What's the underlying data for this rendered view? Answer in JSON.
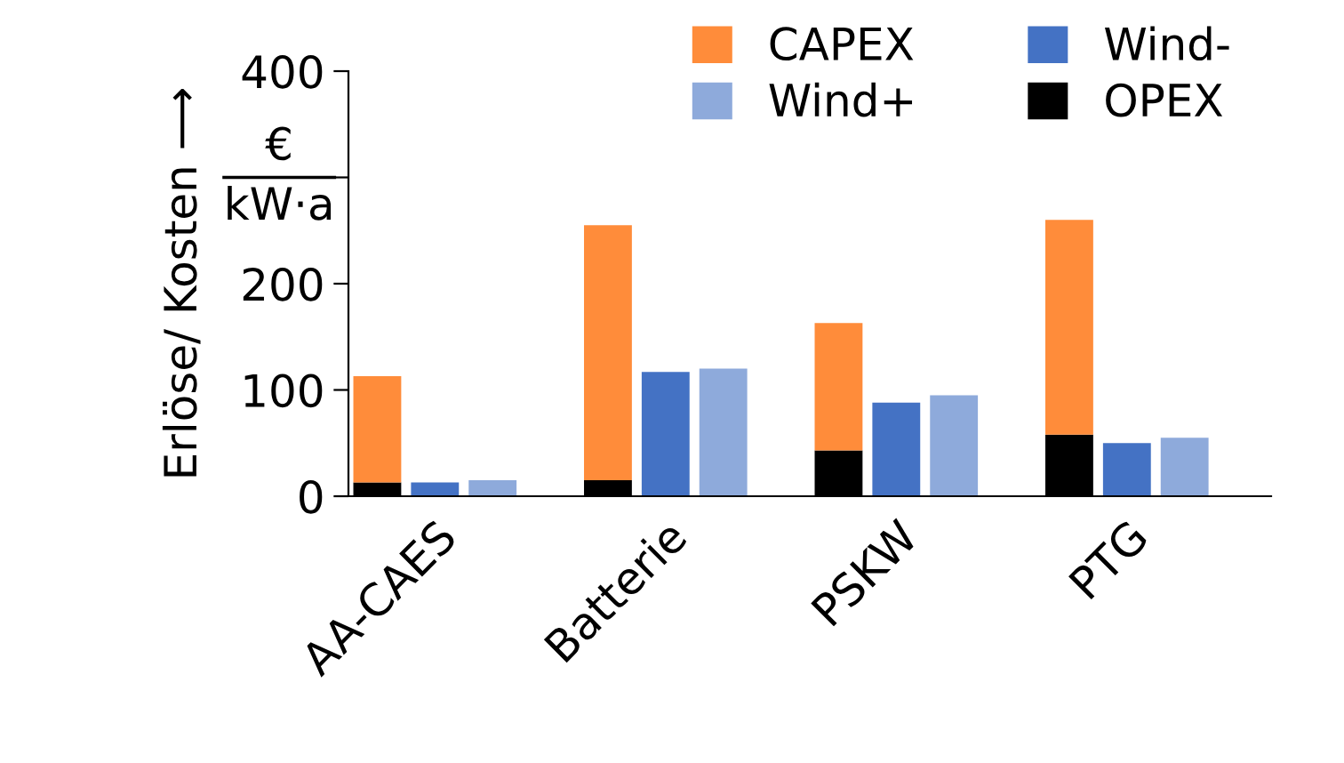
{
  "chart_data": {
    "type": "bar",
    "categories": [
      null,
      "AA-CAES",
      null,
      null,
      null,
      "Batterie",
      null,
      null,
      null,
      "PSKW",
      null,
      null,
      null,
      "PTG",
      null,
      null
    ],
    "ylabel": "Erlöse/ Kosten ⟶",
    "series": [
      {
        "name": "OPEX",
        "color": "#000000",
        "values": [
          13,
          null,
          null,
          null,
          15,
          null,
          null,
          null,
          43,
          null,
          null,
          null,
          58,
          null,
          null,
          null
        ]
      },
      {
        "name": "CAPEX",
        "color": "#ff8c3a",
        "values": [
          100,
          null,
          null,
          null,
          240,
          null,
          null,
          null,
          120,
          null,
          null,
          null,
          202,
          null,
          null,
          null
        ]
      },
      {
        "name": "Wind-",
        "color": "#4472c4",
        "values": [
          null,
          13,
          null,
          null,
          null,
          117,
          null,
          null,
          null,
          88,
          null,
          null,
          null,
          50,
          null,
          null
        ]
      },
      {
        "name": "Wind+",
        "color": "#8eaadb",
        "values": [
          null,
          null,
          15,
          null,
          null,
          null,
          120,
          null,
          null,
          null,
          95,
          null,
          null,
          null,
          55,
          null
        ]
      }
    ],
    "stacked": true,
    "ylim": [
      0,
      400
    ],
    "yticks": [
      0,
      100,
      200,
      {
        "value": 300,
        "label": null
      },
      400
    ],
    "annotations": [
      "€",
      "kW·a"
    ],
    "grid": false,
    "legend": "top right"
  }
}
